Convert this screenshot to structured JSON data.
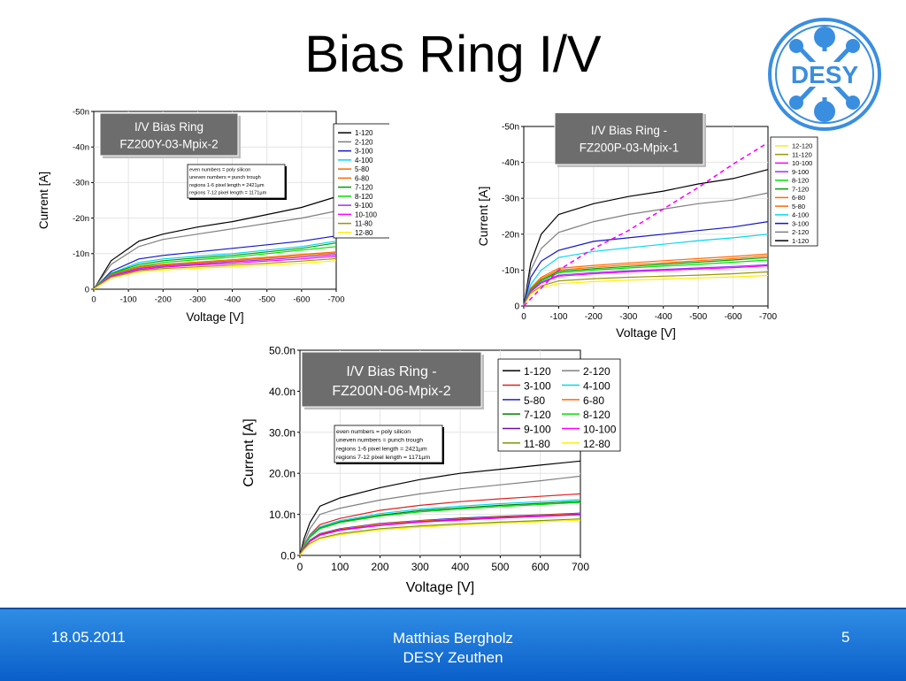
{
  "slide": {
    "title": "Bias Ring I/V",
    "logo_text": "DESY",
    "footer": {
      "date": "18.05.2011",
      "author": "Matthias Bergholz",
      "institute": "DESY Zeuthen",
      "page": "5"
    }
  },
  "colors": {
    "footer": "#1e78d8",
    "logo": "#3a8ee0",
    "series": {
      "1-120": "#000000",
      "2-120": "#7f7f7f",
      "3-100": "#1515c8",
      "4-100": "#00d8f0",
      "5-80": "#ff6a00",
      "6-80": "#ff6a00",
      "7-120": "#00a000",
      "8-120": "#00e000",
      "9-100": "#9b30ff",
      "10-100": "#ff00ff",
      "11-80": "#999900",
      "12-80": "#ffee00",
      "n-3-100": "#e02020",
      "n-5-80": "#2020d0",
      "n-7-120": "#008000",
      "n-9-100": "#6a0dad",
      "n-11-80": "#7a9a00"
    }
  },
  "notes": [
    "even numbers = poly silicon",
    "uneven numbers  = punch trough",
    "regions 1-6 pixel length = 2421µm",
    "regions 7-12 pixel length = 1171µm"
  ],
  "chart_data": [
    {
      "type": "line",
      "title": "I/V Bias Ring\nFZ200Y-03-Mpix-2",
      "xlabel": "Voltage [V]",
      "ylabel": "Current [A]",
      "xlim": [
        0,
        -700
      ],
      "ylim": [
        0,
        -50
      ],
      "x_ticks": [
        "0",
        "-100",
        "-200",
        "-300",
        "-400",
        "-500",
        "-600",
        "-700"
      ],
      "y_ticks": [
        "0",
        "-10n",
        "-20n",
        "-30n",
        "-40n",
        "-50n"
      ],
      "legend": [
        "1-120",
        "2-120",
        "3-100",
        "4-100",
        "5-80",
        "6-80",
        "7-120",
        "8-120",
        "9-100",
        "10-100",
        "11-80",
        "12-80"
      ],
      "x": [
        0,
        -50,
        -130,
        -200,
        -300,
        -400,
        -500,
        -600,
        -700
      ],
      "series": [
        {
          "name": "1-120",
          "values": [
            0,
            -8,
            -13.5,
            -15.5,
            -17.5,
            -19,
            -21,
            -23,
            -26
          ]
        },
        {
          "name": "2-120",
          "values": [
            0,
            -7,
            -12,
            -14,
            -15.5,
            -17,
            -18.5,
            -20,
            -22
          ]
        },
        {
          "name": "3-100",
          "values": [
            0,
            -5,
            -8.5,
            -9.5,
            -10.5,
            -11.5,
            -12.5,
            -13.5,
            -15
          ]
        },
        {
          "name": "4-100",
          "values": [
            0,
            -4.5,
            -7.5,
            -8.5,
            -9.3,
            -10,
            -11,
            -12,
            -13.5
          ]
        },
        {
          "name": "7-120",
          "values": [
            0,
            -4.4,
            -7,
            -8,
            -8.8,
            -9.5,
            -10.5,
            -11.5,
            -13
          ]
        },
        {
          "name": "8-120",
          "values": [
            0,
            -4.2,
            -6.5,
            -7.5,
            -8.3,
            -9,
            -10,
            -11,
            -12
          ]
        },
        {
          "name": "5-80",
          "values": [
            0,
            -4,
            -6.3,
            -7,
            -7.6,
            -8.3,
            -9,
            -9.8,
            -10.5
          ]
        },
        {
          "name": "6-80",
          "values": [
            0,
            -3.9,
            -6,
            -6.8,
            -7.4,
            -8,
            -8.7,
            -9.4,
            -10.2
          ]
        },
        {
          "name": "9-100",
          "values": [
            0,
            -3.8,
            -5.8,
            -6.5,
            -7.1,
            -7.7,
            -8.3,
            -9,
            -9.8
          ]
        },
        {
          "name": "10-100",
          "values": [
            0,
            -3.6,
            -5.5,
            -6.2,
            -6.8,
            -7.3,
            -7.9,
            -8.5,
            -9.3
          ]
        },
        {
          "name": "11-80",
          "values": [
            0,
            -3.3,
            -5.2,
            -5.8,
            -6.3,
            -6.8,
            -7.3,
            -7.9,
            -8.6
          ]
        },
        {
          "name": "12-80",
          "values": [
            0,
            -3.1,
            -4.8,
            -5.4,
            -5.9,
            -6.3,
            -6.8,
            -7.3,
            -8
          ]
        }
      ]
    },
    {
      "type": "line",
      "title": "I/V Bias Ring -\nFZ200P-03-Mpix-1",
      "xlabel": "Voltage [V]",
      "ylabel": "Current [A]",
      "xlim": [
        0,
        -700
      ],
      "ylim": [
        0,
        -50
      ],
      "x_ticks": [
        "0",
        "-100",
        "-200",
        "-300",
        "-400",
        "-500",
        "-600",
        "-700"
      ],
      "y_ticks": [
        "0",
        "-10n",
        "-20n",
        "-30n",
        "-40n",
        "-50n"
      ],
      "legend": [
        "12-120",
        "11-120",
        "10-100",
        "9-100",
        "8-120",
        "7-120",
        "6-80",
        "5-80",
        "4-100",
        "3-100",
        "2-120",
        "1-120"
      ],
      "x": [
        0,
        -20,
        -50,
        -100,
        -200,
        -300,
        -400,
        -500,
        -600,
        -700
      ],
      "series": [
        {
          "name": "1-120",
          "values": [
            0,
            -12,
            -20,
            -25.5,
            -28.5,
            -30.5,
            -32,
            -34,
            -35.5,
            -38
          ]
        },
        {
          "name": "2-120",
          "values": [
            0,
            -10,
            -16,
            -20.5,
            -23.5,
            -25.5,
            -27,
            -28.5,
            -29.5,
            -31.5
          ]
        },
        {
          "name": "3-100",
          "values": [
            0,
            -8,
            -12.5,
            -15.5,
            -18,
            -19,
            -20,
            -21,
            -22,
            -23.5
          ]
        },
        {
          "name": "4-100",
          "values": [
            0,
            -6,
            -10,
            -13.5,
            -15.2,
            -16.2,
            -17.2,
            -18.2,
            -19,
            -20
          ]
        },
        {
          "name": "5-80",
          "values": [
            0,
            -5,
            -8,
            -10.5,
            -11.3,
            -12,
            -12.6,
            -13.2,
            -13.8,
            -14.5
          ]
        },
        {
          "name": "6-80",
          "values": [
            0,
            -4.8,
            -7.6,
            -10,
            -10.8,
            -11.5,
            -12,
            -12.6,
            -13.2,
            -14
          ]
        },
        {
          "name": "7-120",
          "values": [
            0,
            -4.6,
            -7.2,
            -9.6,
            -10.4,
            -11,
            -11.6,
            -12.2,
            -12.8,
            -13.5
          ]
        },
        {
          "name": "8-120",
          "values": [
            0,
            -4.4,
            -7,
            -9.2,
            -10,
            -10.6,
            -11.1,
            -11.6,
            -12.2,
            -12.8
          ]
        },
        {
          "name": "9-100",
          "values": [
            0,
            -4.2,
            -6.6,
            -8.6,
            -9.3,
            -9.8,
            -10.2,
            -10.6,
            -11,
            -11.5
          ]
        },
        {
          "name": "10-100",
          "values": [
            0,
            -4,
            -6.4,
            -8.3,
            -9,
            -9.5,
            -9.9,
            -10.3,
            -10.7,
            -11.2
          ]
        },
        {
          "name": "11-120",
          "values": [
            0,
            -3.6,
            -5.6,
            -7,
            -7.6,
            -8,
            -8.3,
            -8.6,
            -9,
            -9.5
          ]
        },
        {
          "name": "12-120",
          "values": [
            0,
            -3.3,
            -5.2,
            -6.2,
            -6.8,
            -7.2,
            -7.5,
            -7.8,
            -8.1,
            -8.5
          ]
        },
        {
          "name": "dashed",
          "values": [
            0,
            -2,
            -5,
            -10,
            -16,
            -21,
            -27,
            -33,
            -39.5,
            -45.5
          ]
        }
      ]
    },
    {
      "type": "line",
      "title": "I/V Bias Ring -\nFZ200N-06-Mpix-2",
      "xlabel": "Voltage [V]",
      "ylabel": "Current [A]",
      "xlim": [
        0,
        700
      ],
      "ylim": [
        0,
        50
      ],
      "x_ticks": [
        "0",
        "100",
        "200",
        "300",
        "400",
        "500",
        "600",
        "700"
      ],
      "y_ticks": [
        "0.0",
        "10.0n",
        "20.0n",
        "30.0n",
        "40.0n",
        "50.0n"
      ],
      "legend": [
        "1-120",
        "2-120",
        "3-100",
        "4-100",
        "5-80",
        "6-80",
        "7-120",
        "8-120",
        "9-100",
        "10-100",
        "11-80",
        "12-80"
      ],
      "x": [
        0,
        10,
        25,
        50,
        100,
        200,
        300,
        400,
        500,
        600,
        700
      ],
      "series": [
        {
          "name": "1-120",
          "values": [
            0,
            4,
            8,
            12,
            14,
            16.5,
            18.5,
            20,
            21,
            22,
            23
          ]
        },
        {
          "name": "2-120",
          "values": [
            0,
            3,
            6.5,
            10,
            11.5,
            13.5,
            15,
            16.2,
            17.2,
            18.2,
            19.3
          ]
        },
        {
          "name": "3-100",
          "values": [
            0,
            2.5,
            5,
            7.5,
            9,
            11,
            12.2,
            13.1,
            13.8,
            14.4,
            15
          ]
        },
        {
          "name": "4-100",
          "values": [
            0,
            2.3,
            4.8,
            7,
            8.5,
            10.2,
            11.3,
            12,
            12.6,
            13.1,
            13.6
          ]
        },
        {
          "name": "7-120",
          "values": [
            0,
            2.2,
            4.5,
            6.7,
            8.2,
            9.8,
            10.9,
            11.6,
            12.2,
            12.7,
            13.2
          ]
        },
        {
          "name": "8-120",
          "values": [
            0,
            2.2,
            4.4,
            6.5,
            8,
            9.6,
            10.6,
            11.3,
            11.9,
            12.4,
            12.9
          ]
        },
        {
          "name": "5-80",
          "values": [
            0,
            1.8,
            3.7,
            5.3,
            6.5,
            7.8,
            8.5,
            9.1,
            9.5,
            9.9,
            10.3
          ]
        },
        {
          "name": "6-80",
          "values": [
            0,
            1.8,
            3.6,
            5.2,
            6.4,
            7.7,
            8.4,
            8.9,
            9.4,
            9.8,
            10.2
          ]
        },
        {
          "name": "9-100",
          "values": [
            0,
            1.7,
            3.5,
            5,
            6.2,
            7.4,
            8.2,
            8.7,
            9.2,
            9.6,
            10
          ]
        },
        {
          "name": "10-100",
          "values": [
            0,
            1.7,
            3.4,
            4.9,
            6.1,
            7.3,
            8.1,
            8.6,
            9.1,
            9.5,
            9.9
          ]
        },
        {
          "name": "11-80",
          "values": [
            0,
            1.4,
            2.9,
            4.2,
            5.3,
            6.5,
            7.2,
            7.7,
            8.1,
            8.5,
            8.9
          ]
        },
        {
          "name": "12-80",
          "values": [
            0,
            1.3,
            2.7,
            4,
            5,
            6.2,
            6.9,
            7.4,
            7.8,
            8.2,
            8.6
          ]
        }
      ]
    }
  ]
}
